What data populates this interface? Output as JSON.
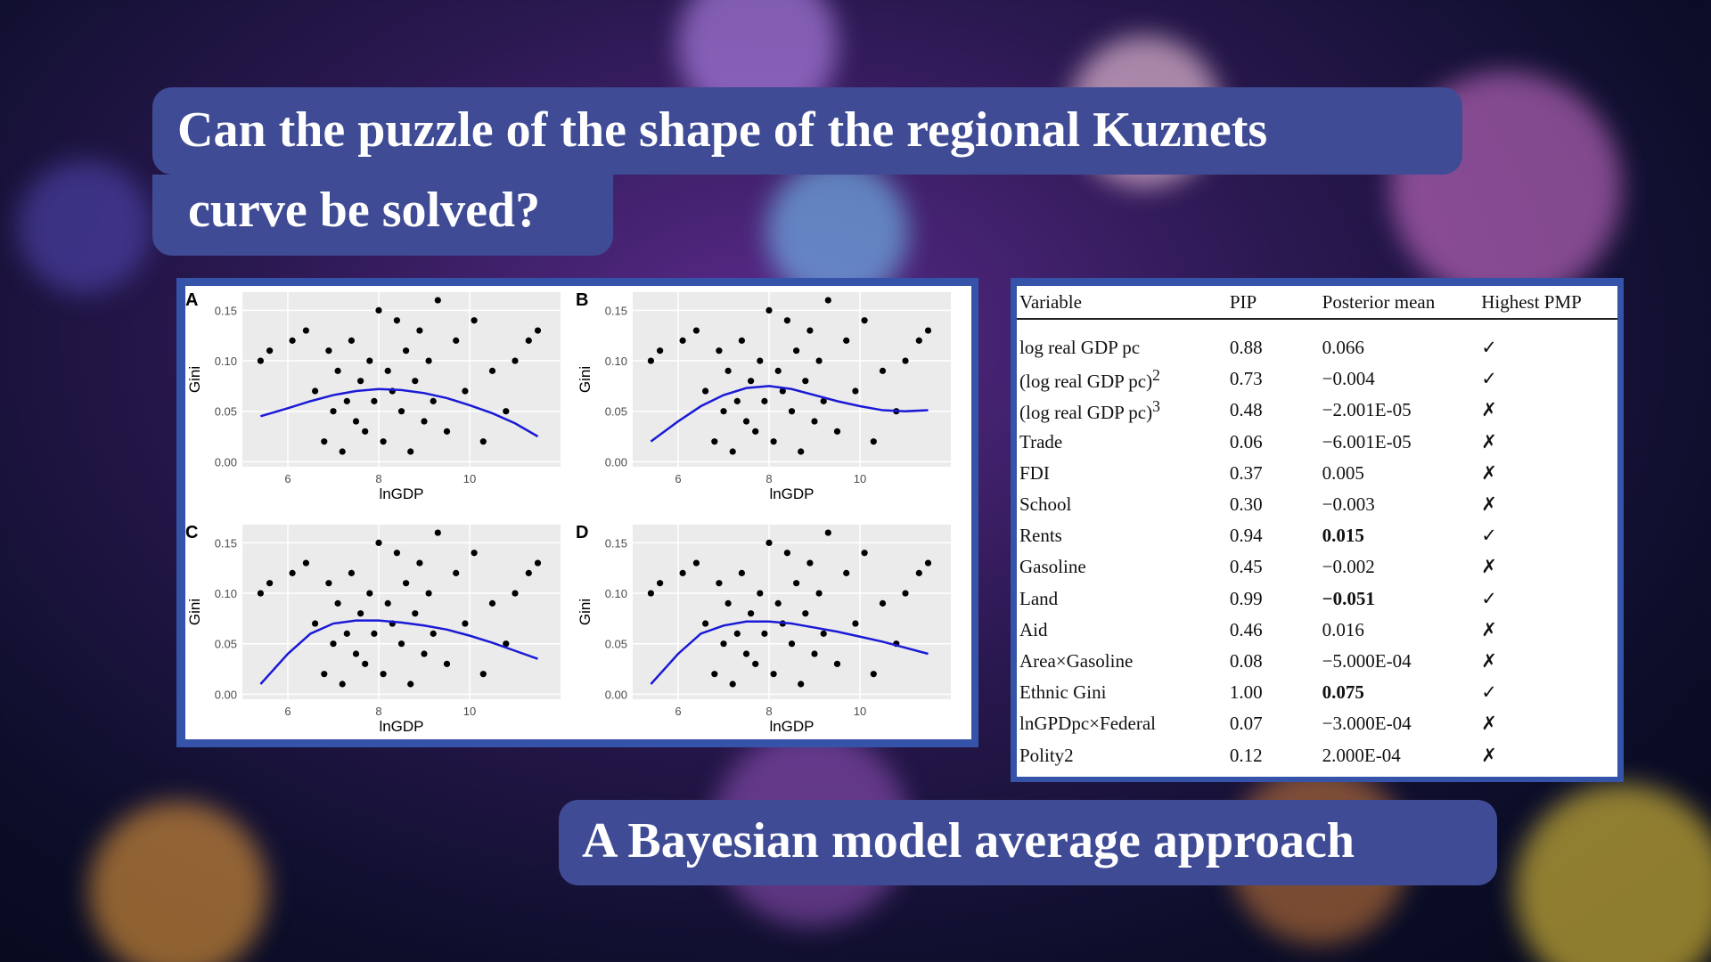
{
  "slide": {
    "title_line_1": "Can the puzzle of the shape of the regional Kuznets",
    "title_line_2": "curve be solved?",
    "subtitle": "A Bayesian model average approach"
  },
  "chart_data": [
    {
      "type": "scatter",
      "panel": "A",
      "x_label": "lnGDP",
      "y_label": "Gini",
      "xlim": [
        5,
        12
      ],
      "ylim": [
        -0.005,
        0.168
      ],
      "xticks": [
        6,
        8,
        10
      ],
      "yticks": [
        {
          "value": 0,
          "label": "0.00"
        },
        0.05,
        {
          "value": 0.1,
          "label": "0.10"
        },
        0.15
      ],
      "grid": true,
      "series": [
        {
          "type": "scatter",
          "color": "#000000",
          "x": [
            5.4,
            5.6,
            6.1,
            6.4,
            6.6,
            6.8,
            6.9,
            7.0,
            7.1,
            7.2,
            7.3,
            7.4,
            7.5,
            7.6,
            7.7,
            7.8,
            7.9,
            8.0,
            8.1,
            8.2,
            8.3,
            8.4,
            8.5,
            8.6,
            8.7,
            8.8,
            8.9,
            9.0,
            9.1,
            9.2,
            9.3,
            9.5,
            9.7,
            9.9,
            10.1,
            10.3,
            10.5,
            10.8,
            11.0,
            11.3,
            11.5
          ],
          "values": [
            0.1,
            0.11,
            0.12,
            0.13,
            0.07,
            0.02,
            0.11,
            0.05,
            0.09,
            0.01,
            0.06,
            0.12,
            0.04,
            0.08,
            0.03,
            0.1,
            0.06,
            0.15,
            0.02,
            0.09,
            0.07,
            0.14,
            0.05,
            0.11,
            0.01,
            0.08,
            0.13,
            0.04,
            0.1,
            0.06,
            0.16,
            0.03,
            0.12,
            0.07,
            0.14,
            0.02,
            0.09,
            0.05,
            0.1,
            0.12,
            0.13
          ]
        },
        {
          "type": "line",
          "color": "#1a1ad6",
          "x": [
            5.4,
            6,
            6.5,
            7,
            7.5,
            8,
            8.5,
            9,
            9.5,
            10,
            10.5,
            11,
            11.5
          ],
          "values": [
            0.045,
            0.053,
            0.06,
            0.066,
            0.07,
            0.072,
            0.071,
            0.068,
            0.063,
            0.056,
            0.048,
            0.038,
            0.025
          ]
        }
      ]
    },
    {
      "type": "scatter",
      "panel": "B",
      "x_label": "lnGDP",
      "y_label": "Gini",
      "xlim": [
        5,
        12
      ],
      "ylim": [
        -0.005,
        0.168
      ],
      "xticks": [
        6,
        8,
        10
      ],
      "yticks": [
        {
          "value": 0,
          "label": "0.00"
        },
        0.05,
        {
          "value": 0.1,
          "label": "0.10"
        },
        0.15
      ],
      "grid": true,
      "series": [
        {
          "type": "scatter",
          "color": "#000000",
          "x": [
            5.4,
            5.6,
            6.1,
            6.4,
            6.6,
            6.8,
            6.9,
            7.0,
            7.1,
            7.2,
            7.3,
            7.4,
            7.5,
            7.6,
            7.7,
            7.8,
            7.9,
            8.0,
            8.1,
            8.2,
            8.3,
            8.4,
            8.5,
            8.6,
            8.7,
            8.8,
            8.9,
            9.0,
            9.1,
            9.2,
            9.3,
            9.5,
            9.7,
            9.9,
            10.1,
            10.3,
            10.5,
            10.8,
            11.0,
            11.3,
            11.5
          ],
          "values": [
            0.1,
            0.11,
            0.12,
            0.13,
            0.07,
            0.02,
            0.11,
            0.05,
            0.09,
            0.01,
            0.06,
            0.12,
            0.04,
            0.08,
            0.03,
            0.1,
            0.06,
            0.15,
            0.02,
            0.09,
            0.07,
            0.14,
            0.05,
            0.11,
            0.01,
            0.08,
            0.13,
            0.04,
            0.1,
            0.06,
            0.16,
            0.03,
            0.12,
            0.07,
            0.14,
            0.02,
            0.09,
            0.05,
            0.1,
            0.12,
            0.13
          ]
        },
        {
          "type": "line",
          "color": "#1a1ad6",
          "x": [
            5.4,
            6,
            6.5,
            7,
            7.5,
            8,
            8.5,
            9,
            9.5,
            10,
            10.5,
            11,
            11.5
          ],
          "values": [
            0.02,
            0.04,
            0.055,
            0.066,
            0.073,
            0.075,
            0.072,
            0.066,
            0.06,
            0.055,
            0.051,
            0.05,
            0.051
          ]
        }
      ]
    },
    {
      "type": "scatter",
      "panel": "C",
      "x_label": "lnGDP",
      "y_label": "Gini",
      "xlim": [
        5,
        12
      ],
      "ylim": [
        -0.005,
        0.168
      ],
      "xticks": [
        6,
        8,
        10
      ],
      "yticks": [
        {
          "value": 0,
          "label": "0.00"
        },
        0.05,
        {
          "value": 0.1,
          "label": "0.10"
        },
        0.15
      ],
      "grid": true,
      "series": [
        {
          "type": "scatter",
          "color": "#000000",
          "x": [
            5.4,
            5.6,
            6.1,
            6.4,
            6.6,
            6.8,
            6.9,
            7.0,
            7.1,
            7.2,
            7.3,
            7.4,
            7.5,
            7.6,
            7.7,
            7.8,
            7.9,
            8.0,
            8.1,
            8.2,
            8.3,
            8.4,
            8.5,
            8.6,
            8.7,
            8.8,
            8.9,
            9.0,
            9.1,
            9.2,
            9.3,
            9.5,
            9.7,
            9.9,
            10.1,
            10.3,
            10.5,
            10.8,
            11.0,
            11.3,
            11.5
          ],
          "values": [
            0.1,
            0.11,
            0.12,
            0.13,
            0.07,
            0.02,
            0.11,
            0.05,
            0.09,
            0.01,
            0.06,
            0.12,
            0.04,
            0.08,
            0.03,
            0.1,
            0.06,
            0.15,
            0.02,
            0.09,
            0.07,
            0.14,
            0.05,
            0.11,
            0.01,
            0.08,
            0.13,
            0.04,
            0.1,
            0.06,
            0.16,
            0.03,
            0.12,
            0.07,
            0.14,
            0.02,
            0.09,
            0.05,
            0.1,
            0.12,
            0.13
          ]
        },
        {
          "type": "line",
          "color": "#1a1ad6",
          "x": [
            5.4,
            6,
            6.5,
            7,
            7.5,
            8,
            8.5,
            9,
            9.5,
            10,
            10.5,
            11,
            11.5
          ],
          "values": [
            0.01,
            0.04,
            0.06,
            0.07,
            0.073,
            0.073,
            0.071,
            0.068,
            0.064,
            0.058,
            0.051,
            0.043,
            0.035
          ]
        }
      ]
    },
    {
      "type": "scatter",
      "panel": "D",
      "x_label": "lnGDP",
      "y_label": "Gini",
      "xlim": [
        5,
        12
      ],
      "ylim": [
        -0.005,
        0.168
      ],
      "xticks": [
        6,
        8,
        10
      ],
      "yticks": [
        {
          "value": 0,
          "label": "0.00"
        },
        0.05,
        {
          "value": 0.1,
          "label": "0.10"
        },
        0.15
      ],
      "grid": true,
      "series": [
        {
          "type": "scatter",
          "color": "#000000",
          "x": [
            5.4,
            5.6,
            6.1,
            6.4,
            6.6,
            6.8,
            6.9,
            7.0,
            7.1,
            7.2,
            7.3,
            7.4,
            7.5,
            7.6,
            7.7,
            7.8,
            7.9,
            8.0,
            8.1,
            8.2,
            8.3,
            8.4,
            8.5,
            8.6,
            8.7,
            8.8,
            8.9,
            9.0,
            9.1,
            9.2,
            9.3,
            9.5,
            9.7,
            9.9,
            10.1,
            10.3,
            10.5,
            10.8,
            11.0,
            11.3,
            11.5
          ],
          "values": [
            0.1,
            0.11,
            0.12,
            0.13,
            0.07,
            0.02,
            0.11,
            0.05,
            0.09,
            0.01,
            0.06,
            0.12,
            0.04,
            0.08,
            0.03,
            0.1,
            0.06,
            0.15,
            0.02,
            0.09,
            0.07,
            0.14,
            0.05,
            0.11,
            0.01,
            0.08,
            0.13,
            0.04,
            0.1,
            0.06,
            0.16,
            0.03,
            0.12,
            0.07,
            0.14,
            0.02,
            0.09,
            0.05,
            0.1,
            0.12,
            0.13
          ]
        },
        {
          "type": "line",
          "color": "#1a1ad6",
          "x": [
            5.4,
            6,
            6.5,
            7,
            7.5,
            8,
            8.5,
            9,
            9.5,
            10,
            10.5,
            11,
            11.5
          ],
          "values": [
            0.01,
            0.04,
            0.06,
            0.068,
            0.072,
            0.072,
            0.07,
            0.066,
            0.062,
            0.057,
            0.052,
            0.046,
            0.04
          ]
        }
      ]
    }
  ],
  "table": {
    "header": [
      "Variable",
      "PIP",
      "Posterior mean",
      "Highest PMP"
    ],
    "rows": [
      {
        "cells": [
          "log real GDP pc",
          "0.88",
          "0.066",
          "✓"
        ]
      },
      {
        "cells": [
          "(log real GDP pc)",
          "0.73",
          "−0.004",
          "✓"
        ],
        "sup": "2"
      },
      {
        "cells": [
          "(log real GDP pc)",
          "0.48",
          "−2.001E-05",
          "✗"
        ],
        "sup": "3"
      },
      {
        "cells": [
          "Trade",
          "0.06",
          "−6.001E-05",
          "✗"
        ]
      },
      {
        "cells": [
          "FDI",
          "0.37",
          "0.005",
          "✗"
        ]
      },
      {
        "cells": [
          "School",
          "0.30",
          "−0.003",
          "✗"
        ]
      },
      {
        "cells": [
          "Rents",
          "0.94",
          "0.015",
          "✓"
        ],
        "bold_mean": true
      },
      {
        "cells": [
          "Gasoline",
          "0.45",
          "−0.002",
          "✗"
        ]
      },
      {
        "cells": [
          "Land",
          "0.99",
          "−0.051",
          "✓"
        ],
        "bold_mean": true
      },
      {
        "cells": [
          "Aid",
          "0.46",
          "0.016",
          "✗"
        ]
      },
      {
        "cells": [
          "Area×Gasoline",
          "0.08",
          "−5.000E-04",
          "✗"
        ]
      },
      {
        "cells": [
          "Ethnic Gini",
          "1.00",
          "0.075",
          "✓"
        ],
        "bold_mean": true
      },
      {
        "cells": [
          "lnGPDpc×Federal",
          "0.07",
          "−3.000E-04",
          "✗"
        ]
      },
      {
        "cells": [
          "Polity2",
          "0.12",
          "2.000E-04",
          "✗"
        ]
      }
    ]
  }
}
